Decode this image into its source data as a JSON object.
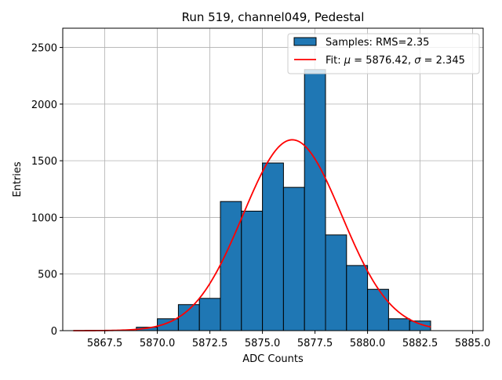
{
  "chart_data": {
    "type": "bar",
    "title": "Run 519, channel049, Pedestal",
    "xlabel": "ADC Counts",
    "ylabel": "Entries",
    "xlim": [
      5865.5,
      5885.5
    ],
    "ylim": [
      0,
      2670
    ],
    "xticks": [
      5867.5,
      5870.0,
      5872.5,
      5875.0,
      5877.5,
      5880.0,
      5882.5,
      5885.0
    ],
    "xtick_labels": [
      "5867.5",
      "5870.0",
      "5872.5",
      "5875.0",
      "5877.5",
      "5880.0",
      "5882.5",
      "5885.0"
    ],
    "yticks": [
      0,
      500,
      1000,
      1500,
      2000,
      2500
    ],
    "ytick_labels": [
      "0",
      "500",
      "1000",
      "1500",
      "2000",
      "2500"
    ],
    "grid": true,
    "histogram": {
      "name": "Samples: RMS=2.35",
      "color": "#1f77b4",
      "edge_color": "#000000",
      "bins": [
        {
          "x0": 5869.0,
          "x1": 5870.0,
          "value": 30
        },
        {
          "x0": 5870.0,
          "x1": 5871.0,
          "value": 105
        },
        {
          "x0": 5871.0,
          "x1": 5872.0,
          "value": 230
        },
        {
          "x0": 5872.0,
          "x1": 5873.0,
          "value": 285
        },
        {
          "x0": 5873.0,
          "x1": 5874.0,
          "value": 1140
        },
        {
          "x0": 5874.0,
          "x1": 5875.0,
          "value": 1055
        },
        {
          "x0": 5875.0,
          "x1": 5876.0,
          "value": 1480
        },
        {
          "x0": 5876.0,
          "x1": 5877.0,
          "value": 1265
        },
        {
          "x0": 5877.0,
          "x1": 5878.0,
          "value": 2305
        },
        {
          "x0": 5878.0,
          "x1": 5879.0,
          "value": 845
        },
        {
          "x0": 5879.0,
          "x1": 5880.0,
          "value": 575
        },
        {
          "x0": 5880.0,
          "x1": 5881.0,
          "value": 365
        },
        {
          "x0": 5881.0,
          "x1": 5882.0,
          "value": 105
        },
        {
          "x0": 5882.0,
          "x1": 5883.0,
          "value": 85
        }
      ]
    },
    "fit": {
      "type": "gaussian",
      "color": "#ff0000",
      "mu": 5876.42,
      "sigma": 2.345,
      "peak": 1685,
      "x_range": [
        5866.0,
        5883.0
      ],
      "label_prefix": "Fit: ",
      "label_mu": "μ",
      "label_mu_value": " = 5876.42, ",
      "label_sigma": "σ",
      "label_sigma_value": " = 2.345"
    },
    "legend_position": "top-right"
  }
}
